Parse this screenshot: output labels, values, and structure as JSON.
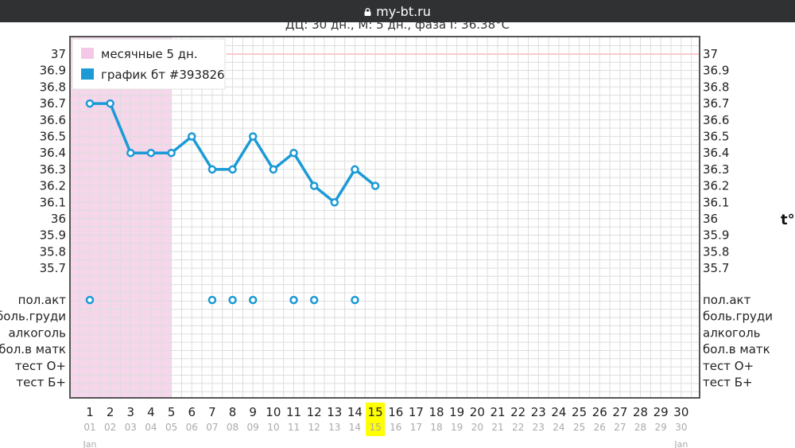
{
  "browser": {
    "url": "my-bt.ru"
  },
  "header": {
    "summary": "ДЦ: 30 дн., М: 5 дн., фаза I: 36.38°C"
  },
  "chart_data": {
    "type": "line",
    "y_axis_label": "t°",
    "ylim": [
      35.7,
      37
    ],
    "y_ticks": [
      "37",
      "36.9",
      "36.8",
      "36.7",
      "36.6",
      "36.5",
      "36.4",
      "36.3",
      "36.2",
      "36.1",
      "36",
      "35.9",
      "35.8",
      "35.7"
    ],
    "x_days": [
      1,
      2,
      3,
      4,
      5,
      6,
      7,
      8,
      9,
      10,
      11,
      12,
      13,
      14,
      15,
      16,
      17,
      18,
      19,
      20,
      21,
      22,
      23,
      24,
      25,
      26,
      27,
      28,
      29,
      30
    ],
    "x_dates": [
      "01",
      "02",
      "03",
      "04",
      "05",
      "06",
      "07",
      "08",
      "09",
      "10",
      "11",
      "12",
      "13",
      "14",
      "15",
      "16",
      "17",
      "18",
      "19",
      "20",
      "21",
      "22",
      "23",
      "24",
      "25",
      "26",
      "27",
      "28",
      "29",
      "30"
    ],
    "month_labels": [
      "Jan",
      "Jan"
    ],
    "highlight_day": 15,
    "menstruation": {
      "start_day": 1,
      "end_day": 5,
      "color": "#f5d6eb"
    },
    "series": [
      {
        "name": "график бт #393826",
        "color": "#1b9ad6",
        "x": [
          1,
          2,
          3,
          4,
          5,
          6,
          7,
          8,
          9,
          10,
          11,
          12,
          13,
          14,
          15
        ],
        "y": [
          36.7,
          36.7,
          36.4,
          36.4,
          36.4,
          36.5,
          36.3,
          36.3,
          36.5,
          36.3,
          36.4,
          36.2,
          36.1,
          36.3,
          36.2
        ]
      }
    ],
    "legend": [
      {
        "label": "месячные 5 дн.",
        "color": "#f5c7e6"
      },
      {
        "label": "график бт #393826",
        "color": "#1b9ad6"
      }
    ],
    "event_rows": [
      "пол.акт",
      "боль.груди",
      "алкоголь",
      "бол.в матк",
      "тест О+",
      "тест Б+"
    ],
    "events": {
      "пол.акт": [
        1,
        7,
        8,
        9,
        11,
        12,
        14
      ]
    },
    "colors": {
      "grid": "#dddddd",
      "frame": "#555555",
      "highlight": "#ffff00",
      "reference_line": "#f8caca"
    }
  }
}
